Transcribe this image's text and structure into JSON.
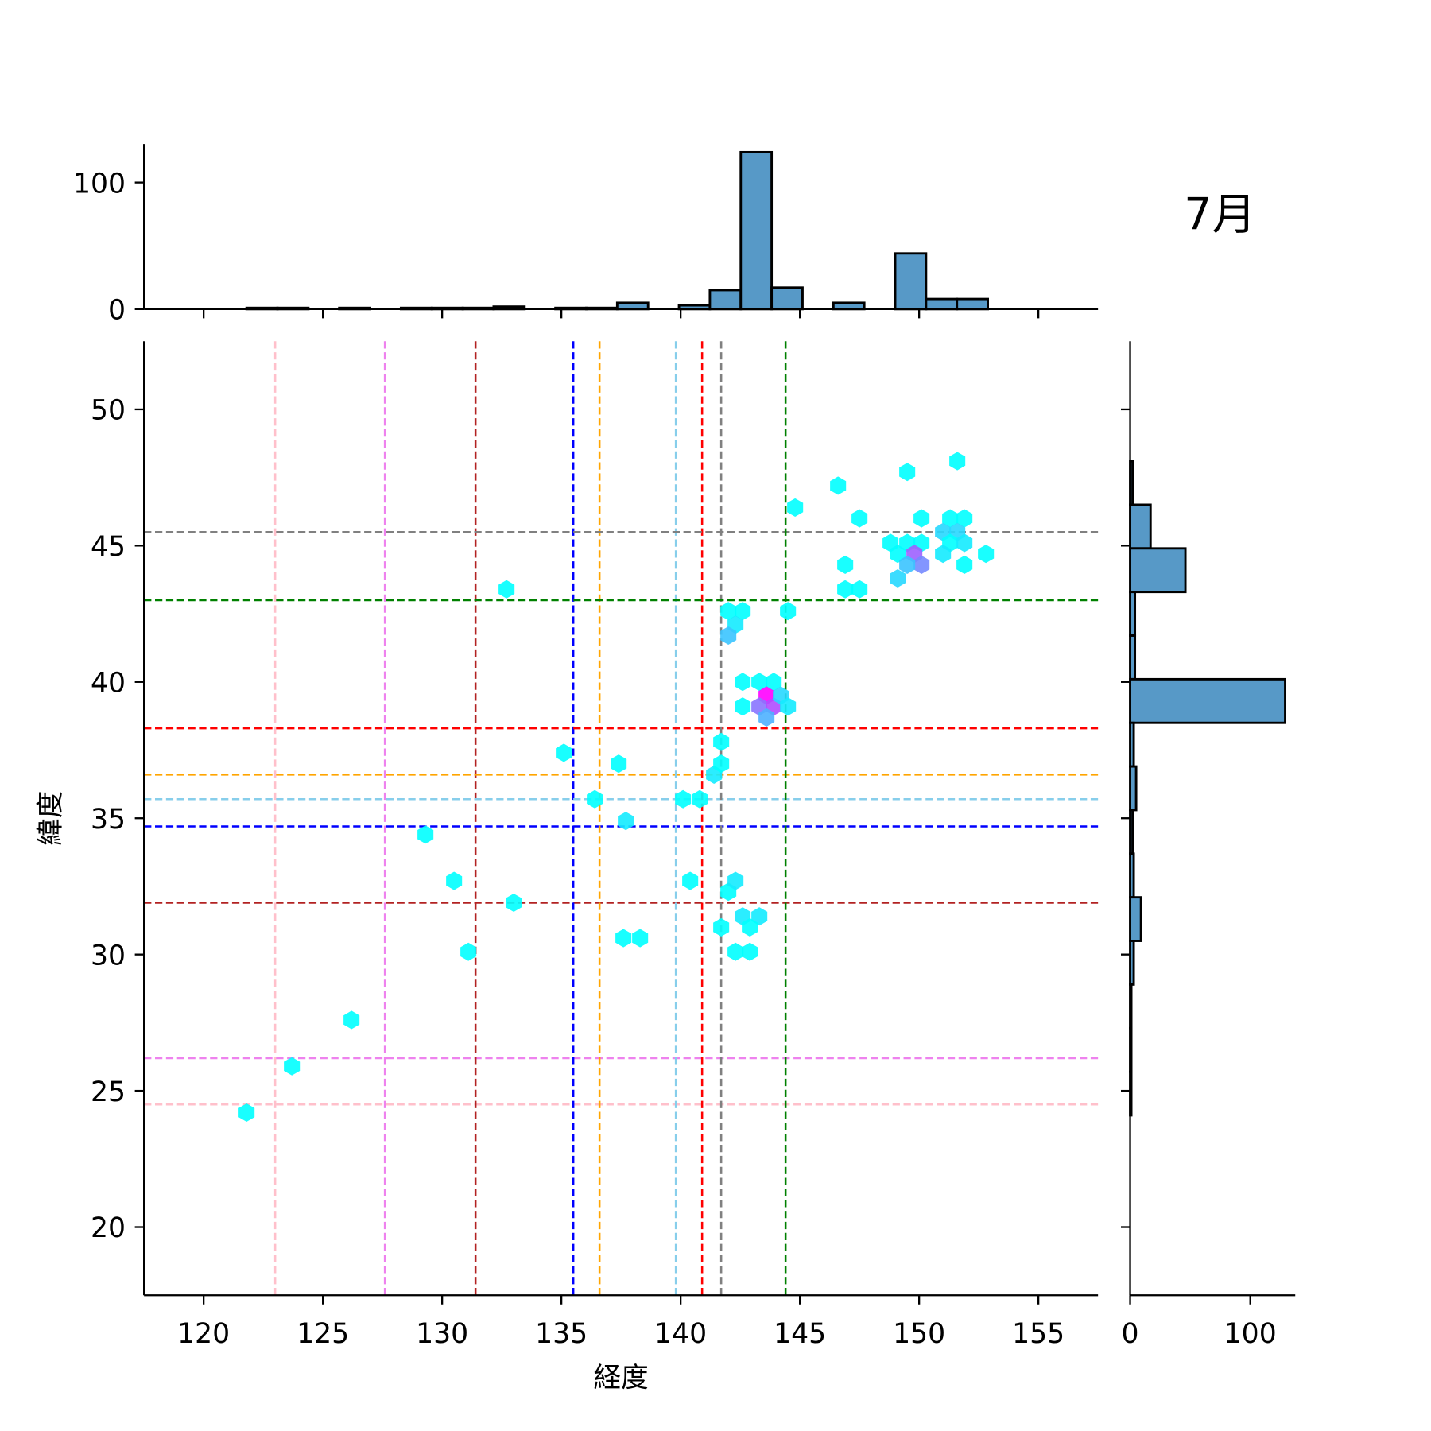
{
  "chart_data": {
    "type": "hexbin-jointplot",
    "title": "7月",
    "xlabel": "経度",
    "ylabel": "緯度",
    "xlim": [
      117.5,
      157.5
    ],
    "ylim": [
      17.5,
      52.5
    ],
    "xticks": [
      "120",
      "125",
      "130",
      "135",
      "140",
      "145",
      "150",
      "155"
    ],
    "yticks": [
      "20",
      "25",
      "30",
      "35",
      "40",
      "45",
      "50"
    ],
    "hist_ticks": [
      "0",
      "100"
    ],
    "colormap": "cool",
    "hexbins": [
      [
        121.8,
        24.2,
        1
      ],
      [
        123.7,
        25.9,
        1
      ],
      [
        126.2,
        27.6,
        1
      ],
      [
        129.3,
        34.4,
        1
      ],
      [
        130.5,
        32.7,
        1
      ],
      [
        131.1,
        30.1,
        1
      ],
      [
        132.7,
        43.4,
        1
      ],
      [
        133.0,
        31.9,
        1
      ],
      [
        135.1,
        37.4,
        1
      ],
      [
        136.4,
        35.7,
        1
      ],
      [
        137.4,
        37.0,
        1
      ],
      [
        137.6,
        30.6,
        1
      ],
      [
        138.3,
        30.6,
        1
      ],
      [
        137.7,
        34.9,
        2
      ],
      [
        140.1,
        35.7,
        1
      ],
      [
        140.8,
        35.7,
        1
      ],
      [
        140.4,
        32.7,
        1
      ],
      [
        141.4,
        36.6,
        2
      ],
      [
        141.7,
        37.0,
        1
      ],
      [
        141.7,
        37.8,
        1
      ],
      [
        141.7,
        31.0,
        1
      ],
      [
        142.0,
        32.3,
        1
      ],
      [
        142.3,
        32.7,
        2
      ],
      [
        142.6,
        31.4,
        2
      ],
      [
        143.3,
        31.4,
        2
      ],
      [
        142.9,
        31.0,
        1
      ],
      [
        142.3,
        30.1,
        1
      ],
      [
        142.9,
        30.1,
        1
      ],
      [
        142.0,
        42.6,
        1
      ],
      [
        142.6,
        42.6,
        1
      ],
      [
        142.3,
        42.1,
        2
      ],
      [
        142.0,
        41.7,
        4
      ],
      [
        142.6,
        40.0,
        1
      ],
      [
        143.3,
        40.0,
        1
      ],
      [
        143.9,
        40.0,
        1
      ],
      [
        142.6,
        39.1,
        1
      ],
      [
        143.6,
        39.5,
        14
      ],
      [
        143.3,
        39.1,
        8
      ],
      [
        143.9,
        39.1,
        10
      ],
      [
        144.2,
        39.5,
        3
      ],
      [
        144.5,
        39.1,
        2
      ],
      [
        143.6,
        38.7,
        5
      ],
      [
        144.5,
        42.6,
        1
      ],
      [
        144.8,
        46.4,
        1
      ],
      [
        146.6,
        47.2,
        1
      ],
      [
        146.9,
        44.3,
        1
      ],
      [
        146.9,
        43.4,
        1
      ],
      [
        147.5,
        43.4,
        1
      ],
      [
        147.5,
        46.0,
        1
      ],
      [
        149.5,
        47.7,
        1
      ],
      [
        151.6,
        48.1,
        1
      ],
      [
        150.1,
        46.0,
        1
      ],
      [
        151.3,
        46.0,
        1
      ],
      [
        151.9,
        46.0,
        1
      ],
      [
        148.8,
        45.1,
        1
      ],
      [
        149.5,
        45.1,
        1
      ],
      [
        150.1,
        45.1,
        1
      ],
      [
        149.1,
        44.7,
        1
      ],
      [
        149.8,
        44.7,
        9
      ],
      [
        150.1,
        44.3,
        7
      ],
      [
        149.5,
        44.3,
        4
      ],
      [
        149.1,
        43.8,
        3
      ],
      [
        151.0,
        45.5,
        3
      ],
      [
        151.6,
        45.5,
        3
      ],
      [
        151.3,
        45.1,
        1
      ],
      [
        151.9,
        45.1,
        2
      ],
      [
        151.0,
        44.7,
        2
      ],
      [
        151.9,
        44.3,
        1
      ],
      [
        152.8,
        44.7,
        1
      ]
    ],
    "ref_lines": [
      {
        "lon": 123.0,
        "lat": 24.5,
        "color": "#ffc0cb"
      },
      {
        "lon": 127.6,
        "lat": 26.2,
        "color": "#ee82ee"
      },
      {
        "lon": 131.4,
        "lat": 31.9,
        "color": "#b22222"
      },
      {
        "lon": 135.5,
        "lat": 34.7,
        "color": "#0000ff"
      },
      {
        "lon": 136.6,
        "lat": 36.6,
        "color": "#ffa500"
      },
      {
        "lon": 139.8,
        "lat": 35.7,
        "color": "#87ceeb"
      },
      {
        "lon": 140.9,
        "lat": 38.3,
        "color": "#ff0000"
      },
      {
        "lon": 141.7,
        "lat": 45.5,
        "color": "#808080"
      },
      {
        "lon": 144.4,
        "lat": 43.0,
        "color": "#008000"
      }
    ],
    "lon_hist": {
      "start": 121.8,
      "binwidth": 1.295,
      "counts": [
        1,
        1,
        0,
        1,
        0,
        1,
        1,
        1,
        2,
        0,
        1,
        1,
        5,
        0,
        3,
        15,
        124,
        17,
        0,
        5,
        0,
        44,
        8,
        8
      ]
    },
    "lat_hist": {
      "start": 48.1,
      "binwidth": -1.6,
      "counts": [
        2,
        17,
        46,
        4,
        4,
        129,
        3,
        5,
        2,
        3,
        9,
        3,
        1,
        1,
        1
      ]
    },
    "bar_color": "#5799c7"
  }
}
